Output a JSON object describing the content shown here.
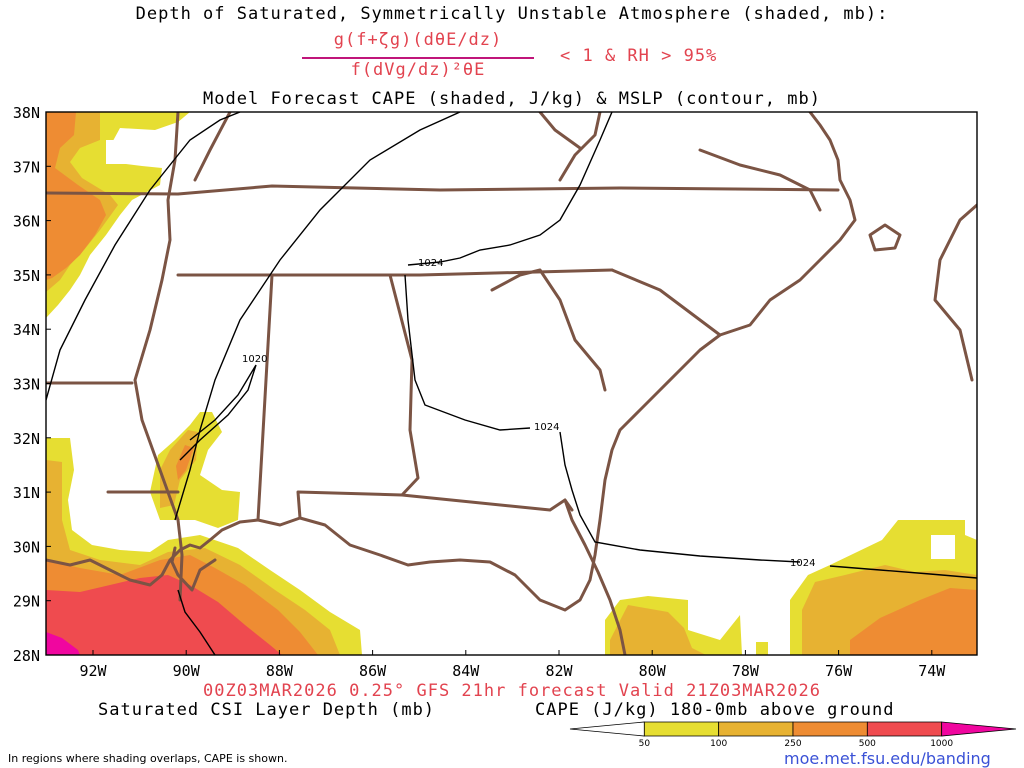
{
  "header": {
    "line1": "Depth of Saturated, Symmetrically Unstable Atmosphere (shaded, mb):",
    "numerator": "g(f+ζg)(dθE/dz)",
    "denominator": "f(dVg/dz)²θE",
    "condition": "< 1 & RH > 95%",
    "line3": "Model Forecast CAPE (shaded, J/kg) & MSLP (contour, mb)"
  },
  "lat_labels": [
    "38N",
    "37N",
    "36N",
    "35N",
    "34N",
    "33N",
    "32N",
    "31N",
    "30N",
    "29N",
    "28N"
  ],
  "lon_labels": [
    "92W",
    "90W",
    "88W",
    "86W",
    "84W",
    "82W",
    "80W",
    "78W",
    "76W",
    "74W"
  ],
  "contour_labels": {
    "a": "1024",
    "b": "1020",
    "c": "1024",
    "d": "1024"
  },
  "footer": {
    "valid": "00Z03MAR2026 0.25° GFS 21hr forecast Valid 21Z03MAR2026",
    "left_label": "Saturated CSI Layer Depth (mb)",
    "right_label": "CAPE (J/kg) 180-0mb above ground",
    "note": "In regions where shading overlaps, CAPE is shown.",
    "site": "moe.met.fsu.edu/banding"
  },
  "colorbar": {
    "ticks": [
      "50",
      "100",
      "250",
      "500",
      "1000"
    ],
    "colors": [
      "#ffffff",
      "#e6de32",
      "#e7b232",
      "#ee8c33",
      "#ef4b4f",
      "#f0069f"
    ]
  },
  "colors": {
    "title_red": "#e2434f",
    "border": "#7b5444",
    "contour": "#000000",
    "cape_50": "#e6de32",
    "cape_100": "#e7b232",
    "cape_250": "#ee8c33",
    "cape_500": "#ef4b4f",
    "cape_1000": "#f0069f"
  }
}
